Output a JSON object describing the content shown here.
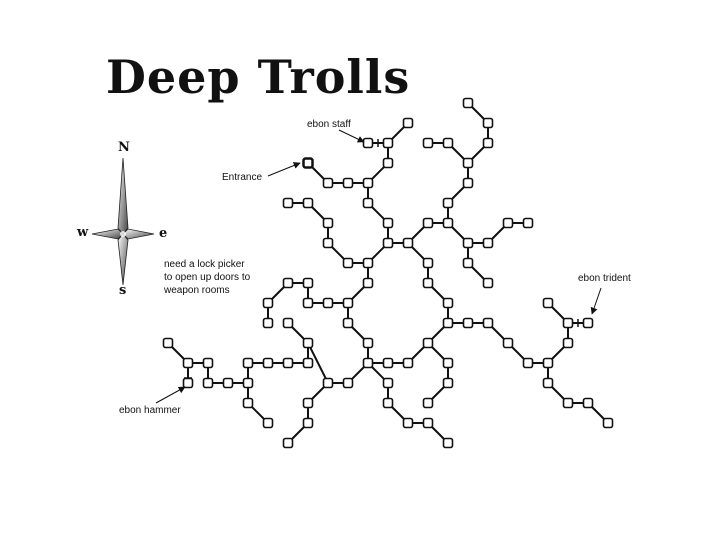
{
  "title": "Deep Trolls",
  "compass": {
    "north": "N",
    "south": "s",
    "east": "e",
    "west": "w"
  },
  "labels": {
    "entrance": "Entrance",
    "ebon_staff": "ebon staff",
    "ebon_trident": "ebon trident",
    "ebon_hammer": "ebon hammer"
  },
  "note": "need a lock picker to open up doors to weapon rooms",
  "colors": {
    "ink": "#111111",
    "room_fill": "#ffffff"
  }
}
